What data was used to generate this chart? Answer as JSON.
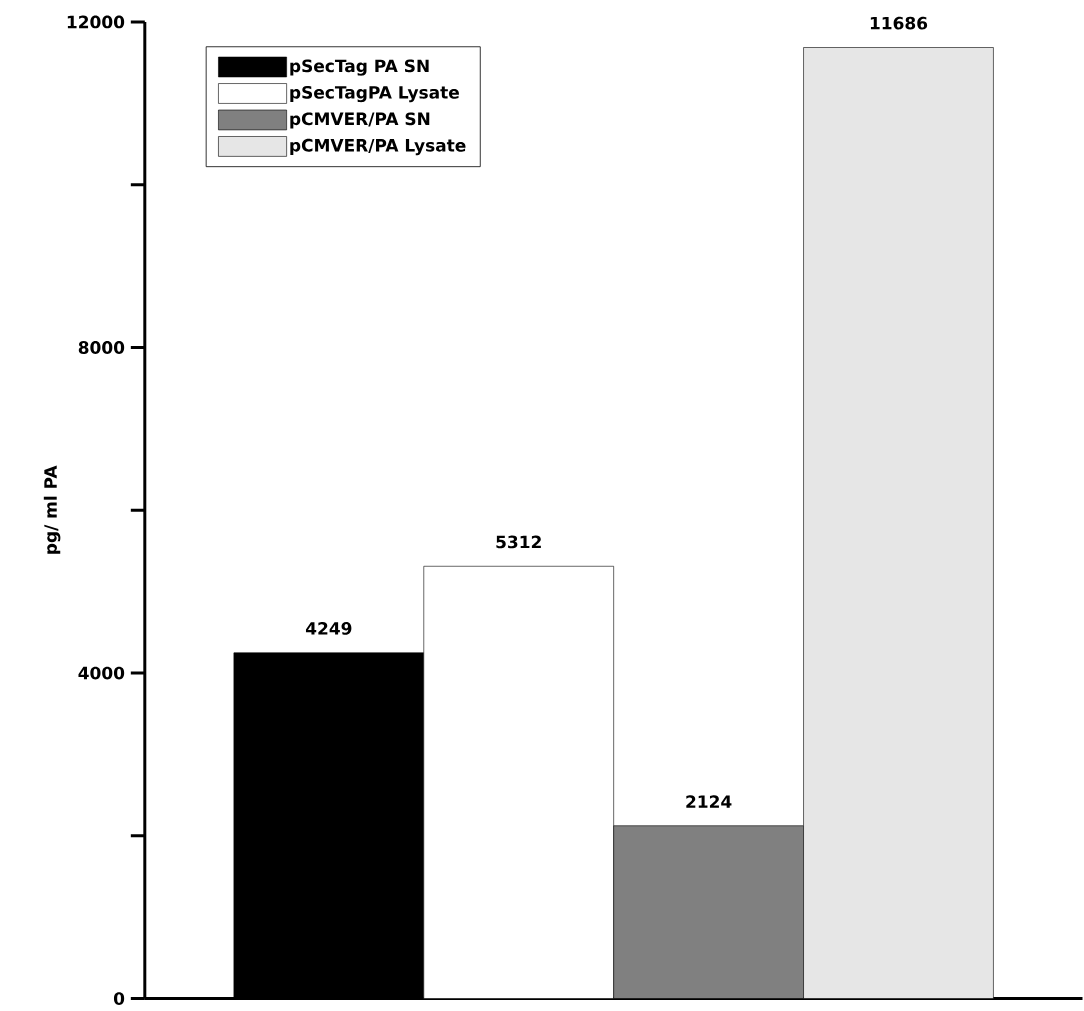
{
  "chart_data": {
    "type": "bar",
    "ylabel": "pg/ ml PA",
    "categories": [
      null
    ],
    "series": [
      {
        "name": "pSecTag PA SN",
        "color": "#000000",
        "values": [
          4249
        ]
      },
      {
        "name": "pSecTagPA Lysate",
        "color": "#ffffff",
        "values": [
          5312
        ]
      },
      {
        "name": "pCMVER/PA SN",
        "color": "#808080",
        "values": [
          2124
        ]
      },
      {
        "name": "pCMVER/PA Lysate",
        "color": "#e6e6e6",
        "values": [
          11686
        ]
      }
    ],
    "ylim": [
      0,
      12000
    ],
    "yticks": [
      0,
      {
        "value": 2000,
        "label": null
      },
      4000,
      {
        "value": 6000,
        "label": null
      },
      8000,
      {
        "value": 10000,
        "label": null
      },
      12000
    ],
    "data_labels": true,
    "legend": "top left",
    "grid": false
  }
}
